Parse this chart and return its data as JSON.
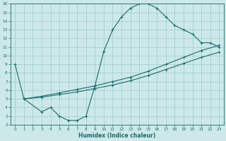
{
  "xlabel": "Humidex (Indice chaleur)",
  "bg_color": "#cce8e8",
  "grid_color": "#99cccc",
  "line_color": "#1a6b6b",
  "xlim": [
    -0.5,
    23.5
  ],
  "ylim": [
    2,
    16
  ],
  "xticks": [
    0,
    1,
    2,
    3,
    4,
    5,
    6,
    7,
    8,
    9,
    10,
    11,
    12,
    13,
    14,
    15,
    16,
    17,
    18,
    19,
    20,
    21,
    22,
    23
  ],
  "yticks": [
    2,
    3,
    4,
    5,
    6,
    7,
    8,
    9,
    10,
    11,
    12,
    13,
    14,
    15,
    16
  ],
  "line1_x": [
    0,
    1,
    3,
    4,
    5,
    6,
    7,
    8,
    9,
    10,
    11,
    12,
    13,
    14,
    15,
    16,
    17,
    18,
    19,
    20,
    21,
    22,
    23
  ],
  "line1_y": [
    9,
    5,
    3.5,
    4.0,
    3.0,
    2.5,
    2.5,
    3.0,
    6.5,
    10.5,
    13.0,
    14.5,
    15.5,
    16.0,
    16.0,
    15.5,
    14.5,
    13.5,
    13.0,
    12.5,
    11.5,
    11.5,
    11.0
  ],
  "line2_x": [
    1,
    3,
    5,
    7,
    9,
    11,
    13,
    15,
    17,
    19,
    21,
    23
  ],
  "line2_y": [
    5.0,
    5.3,
    5.7,
    6.1,
    6.5,
    7.0,
    7.5,
    8.2,
    9.0,
    9.8,
    10.6,
    11.2
  ],
  "line3_x": [
    1,
    3,
    5,
    7,
    9,
    11,
    13,
    15,
    17,
    19,
    21,
    23
  ],
  "line3_y": [
    5.0,
    5.2,
    5.5,
    5.8,
    6.2,
    6.6,
    7.1,
    7.7,
    8.4,
    9.1,
    9.8,
    10.4
  ]
}
